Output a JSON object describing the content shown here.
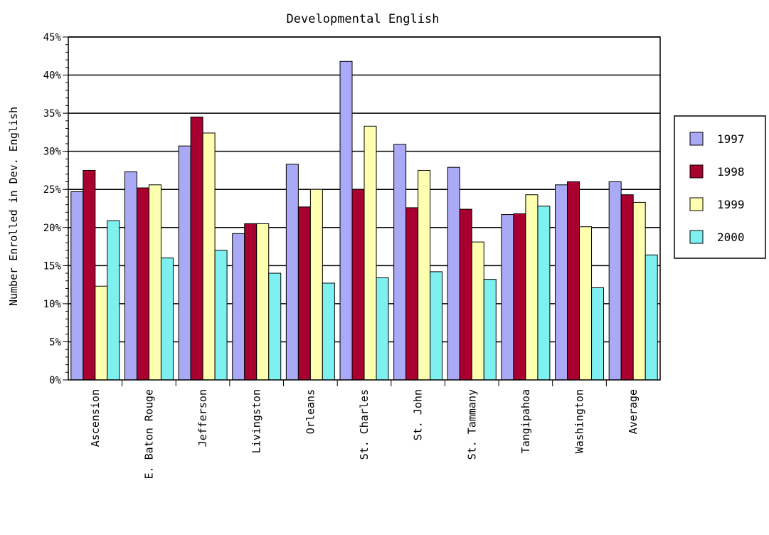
{
  "chart_data": {
    "type": "bar",
    "title": "Developmental English",
    "ylabel": "Number Enrolled in Dev. English",
    "xlabel": "",
    "ylim": [
      0,
      45
    ],
    "yticks": [
      "0%",
      "5%",
      "10%",
      "15%",
      "20%",
      "25%",
      "30%",
      "35%",
      "40%",
      "45%"
    ],
    "grid": true,
    "legend_position": "right",
    "categories": [
      "Ascension",
      "E. Baton Rouge",
      "Jefferson",
      "Livingston",
      "Orleans",
      "St. Charles",
      "St. John",
      "St. Tammany",
      "Tangipahoa",
      "Washington",
      "Average"
    ],
    "series": [
      {
        "name": "1997",
        "color": "#a9a9f5",
        "values": [
          24.7,
          27.3,
          30.7,
          19.2,
          28.3,
          41.8,
          30.9,
          27.9,
          21.7,
          25.6,
          26.0
        ]
      },
      {
        "name": "1998",
        "color": "#a8002f",
        "values": [
          27.5,
          25.2,
          34.5,
          20.5,
          22.7,
          25.0,
          22.6,
          22.4,
          21.8,
          26.0,
          24.3
        ]
      },
      {
        "name": "1999",
        "color": "#ffffb0",
        "values": [
          12.3,
          25.6,
          32.4,
          20.5,
          25.0,
          33.3,
          27.5,
          18.1,
          24.3,
          20.1,
          23.3
        ]
      },
      {
        "name": "2000",
        "color": "#7ff0f0",
        "values": [
          20.9,
          16.0,
          17.0,
          14.0,
          12.7,
          13.4,
          14.2,
          13.2,
          22.8,
          12.1,
          16.4
        ]
      }
    ]
  }
}
